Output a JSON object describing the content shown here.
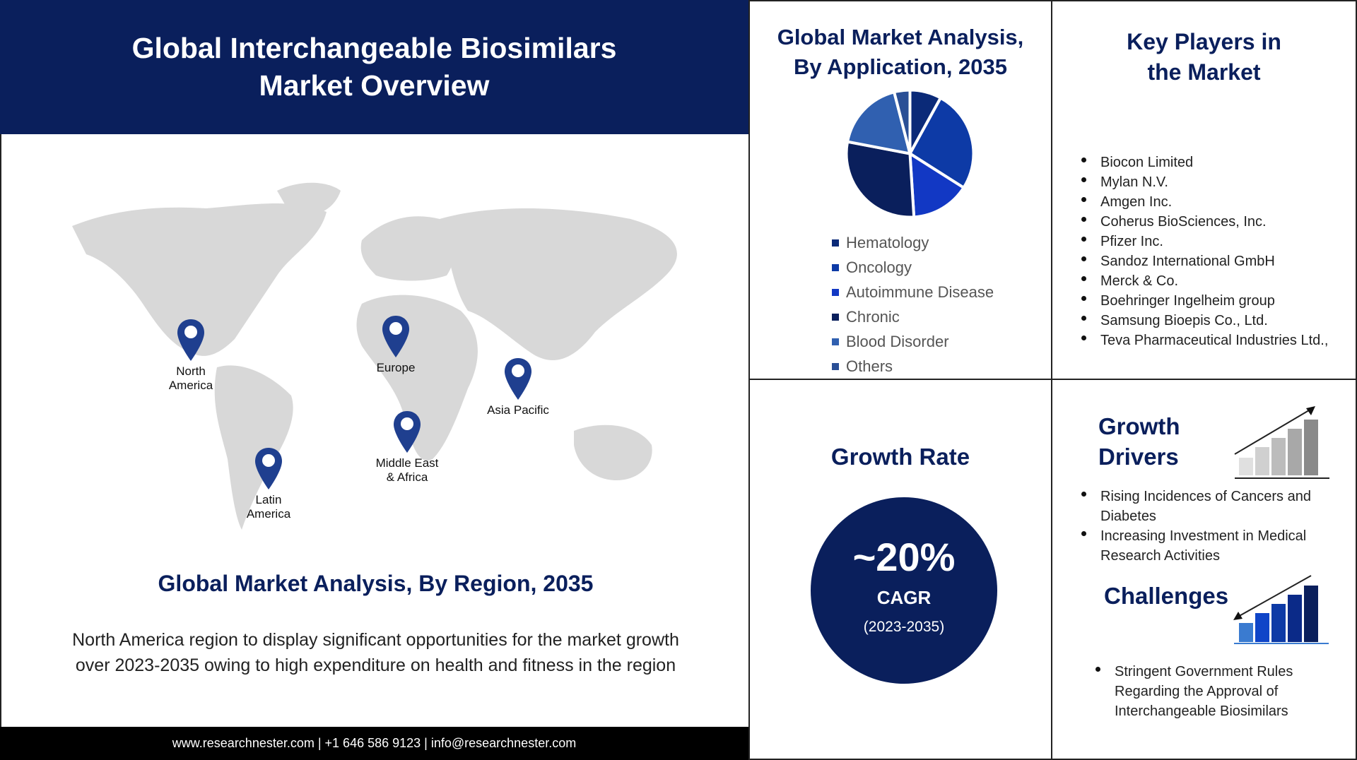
{
  "header": {
    "title_line1": "Global Interchangeable Biosimilars",
    "title_line2": "Market Overview"
  },
  "map": {
    "regions": [
      {
        "name": "North America",
        "line1": "North",
        "line2": "America"
      },
      {
        "name": "Europe",
        "line1": "Europe",
        "line2": ""
      },
      {
        "name": "Asia Pacific",
        "line1": "Asia Pacific",
        "line2": ""
      },
      {
        "name": "Middle East & Africa",
        "line1": "Middle East",
        "line2": "& Africa"
      },
      {
        "name": "Latin America",
        "line1": "Latin",
        "line2": "America"
      }
    ],
    "pin_color": "#1f3f8f"
  },
  "region_section": {
    "title": "Global Market Analysis, By Region, 2035",
    "text_line1": "North America region to display significant opportunities for the market growth",
    "text_line2": "over 2023-2035  owing to high expenditure on health and fitness  in the region"
  },
  "footer": {
    "text": "www.researchnester.com  | +1 646 586 9123 | info@researchnester.com"
  },
  "chart_data": {
    "type": "pie",
    "title_line1": "Global Market Analysis,",
    "title_line2": "By Application, 2035",
    "categories": [
      "Hematology",
      "Oncology",
      "Autoimmune Disease",
      "Chronic",
      "Blood Disorder",
      "Others"
    ],
    "values": [
      8,
      26,
      15,
      29,
      18,
      4
    ],
    "colors": [
      "#0b2a78",
      "#0d3aa6",
      "#1238c4",
      "#0a1f5c",
      "#3060b0",
      "#2a4f96"
    ],
    "legend_placement": "bottom"
  },
  "key_players": {
    "title_line1": "Key Players in",
    "title_line2": "the Market",
    "items": [
      "Biocon Limited",
      "Mylan N.V.",
      "Amgen Inc.",
      "Coherus BioSciences, Inc.",
      "Pfizer Inc.",
      "Sandoz International GmbH",
      "Merck & Co.",
      "Boehringer Ingelheim group",
      "Samsung Bioepis Co., Ltd.",
      "Teva Pharmaceutical Industries Ltd.,"
    ]
  },
  "growth_rate": {
    "title": "Growth Rate",
    "value": "~20%",
    "label": "CAGR",
    "period": "(2023-2035)"
  },
  "growth_drivers": {
    "title_line1": "Growth",
    "title_line2": "Drivers",
    "items": [
      "Rising Incidences of Cancers and Diabetes",
      "Increasing Investment in Medical Research Activities"
    ]
  },
  "challenges": {
    "title": "Challenges",
    "items": [
      "Stringent Government Rules Regarding the Approval of Interchangeable Biosimilars"
    ]
  },
  "colors": {
    "navy": "#0a1f5c"
  }
}
